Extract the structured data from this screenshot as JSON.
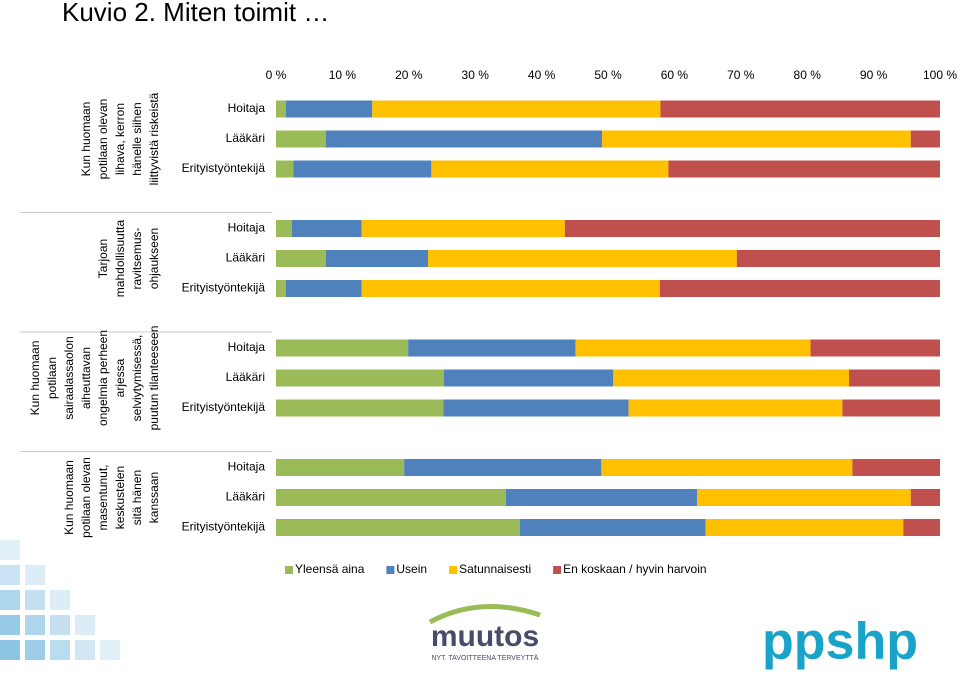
{
  "chart_data": {
    "type": "stacked_bar_h",
    "title": "Kuvio 2. Miten toimit …",
    "groups": [
      [
        "Kun huomaan",
        "potilaan olevan",
        "lihava, kerron",
        "hänelle siihen",
        "liittyvistä riskeistä"
      ],
      [
        "Tarjoan",
        "mahdollisuutta",
        "ravitsemus-",
        "ohjaukseen"
      ],
      [
        "Kun huomaan",
        "potilaan",
        "sairaalassaolon",
        "aiheuttavan",
        "ongelmia perheen",
        "arjessa",
        "selviytymisessä,",
        "puutun tilanteeseen"
      ],
      [
        "Kun huomaan",
        "potilaan olevan",
        "masentunut,",
        "keskustelen",
        "sitä hänen",
        "kanssaan"
      ]
    ],
    "categories": [
      "Hoitaja",
      "Lääkäri",
      "Erityistyöntekijä",
      "Hoitaja",
      "Lääkäri",
      "Erityistyöntekijä",
      "Hoitaja",
      "Lääkäri",
      "Erityistyöntekijä",
      "Hoitaja",
      "Lääkäri",
      "Erityistyöntekijä"
    ],
    "series": [
      {
        "name": "Yleensä aina",
        "color": "#9bbb59",
        "values": [
          1.5,
          7.5,
          2.6,
          2.4,
          7.5,
          1.5,
          19.9,
          25.3,
          25.2,
          19.3,
          34.6,
          36.7
        ]
      },
      {
        "name": "Usein",
        "color": "#4f81bd",
        "values": [
          13,
          41.6,
          20.8,
          10.5,
          15.4,
          11.4,
          25.2,
          25.5,
          27.9,
          29.7,
          28.8,
          28.0
        ]
      },
      {
        "name": "Satunnaisesti",
        "color": "#ffc000",
        "values": [
          43.4,
          46.5,
          35.7,
          30.6,
          46.5,
          44.9,
          35.4,
          35.5,
          32.2,
          37.8,
          32.2,
          29.8
        ]
      },
      {
        "name": "En koskaan / hyvin harvoin",
        "color": "#c0504d",
        "values": [
          42.1,
          4.4,
          40.9,
          56.5,
          30.6,
          42.2,
          19.5,
          13.7,
          14.7,
          13.2,
          4.4,
          5.5
        ]
      }
    ],
    "xlim": [
      0,
      100
    ],
    "xticks": [
      {
        "value": 0,
        "label": "0 %"
      },
      {
        "value": 10,
        "label": "10 %"
      },
      {
        "value": 20,
        "label": "20 %"
      },
      {
        "value": 30,
        "label": "30 %"
      },
      {
        "value": 40,
        "label": "40 %"
      },
      {
        "value": 50,
        "label": "50 %"
      },
      {
        "value": 60,
        "label": "60 %"
      },
      {
        "value": 70,
        "label": "70 %"
      },
      {
        "value": 80,
        "label": "80 %"
      },
      {
        "value": 90,
        "label": "90 %"
      },
      {
        "value": 100,
        "label": "100 %"
      }
    ],
    "legend": "bottom"
  },
  "footer": {
    "logo_left": "muutos",
    "logo_left_tagline": "NYT. TAVOITTEENA TERVEYTTÄ",
    "logo_right": "ppshp"
  }
}
